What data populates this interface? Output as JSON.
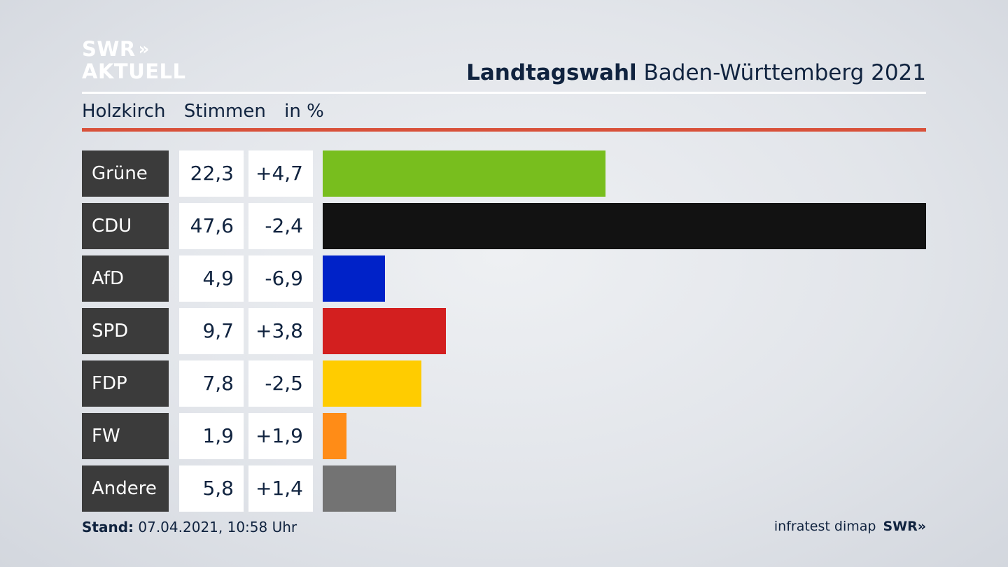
{
  "logo": {
    "line1": "SWR",
    "arrows": "»",
    "line2": "AKTUELL"
  },
  "header": {
    "title_bold": "Landtagswahl",
    "title_rest": "Baden-Württemberg 2021"
  },
  "subheader": {
    "place": "Holzkirch",
    "measure": "Stimmen",
    "unit": "in %"
  },
  "chart_data": {
    "type": "bar",
    "orientation": "horizontal",
    "categories": [
      "Grüne",
      "CDU",
      "AfD",
      "SPD",
      "FDP",
      "FW",
      "Andere"
    ],
    "values": [
      22.3,
      47.6,
      4.9,
      9.7,
      7.8,
      1.9,
      5.8
    ],
    "values_display": [
      "22,3",
      "47,6",
      "4,9",
      "9,7",
      "7,8",
      "1,9",
      "5,8"
    ],
    "changes": [
      4.7,
      -2.4,
      -6.9,
      3.8,
      -2.5,
      1.9,
      1.4
    ],
    "changes_display": [
      "+4,7",
      "-2,4",
      "-6,9",
      "+3,8",
      "-2,5",
      "+1,9",
      "+1,4"
    ],
    "colors": [
      "#78be1e",
      "#121212",
      "#0022c8",
      "#d31f1f",
      "#ffcc00",
      "#ff8c17",
      "#737373"
    ],
    "xlim": [
      0,
      47.6
    ]
  },
  "footer": {
    "stand_label": "Stand:",
    "stand_value": "07.04.2021, 10:58 Uhr",
    "source": "infratest dimap",
    "brand": "SWR",
    "brand_arrows": "»"
  }
}
